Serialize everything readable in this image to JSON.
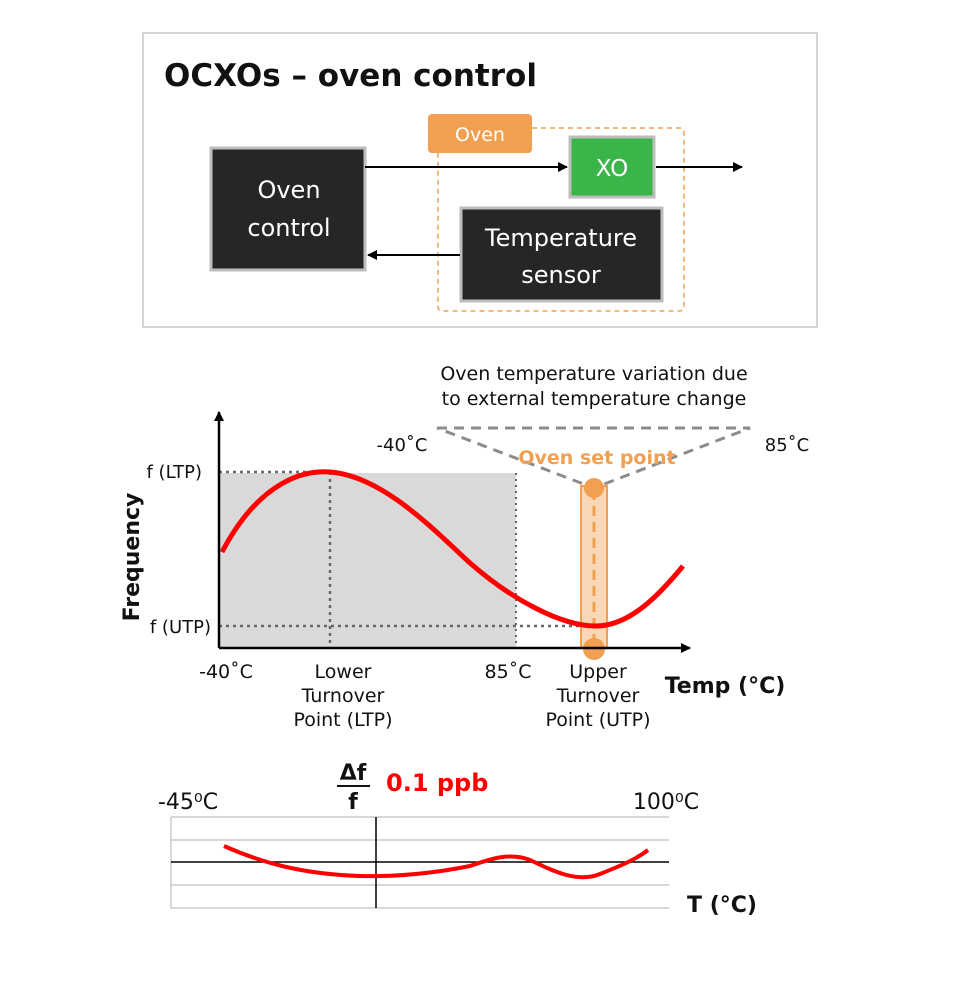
{
  "diagram": {
    "title": "OCXOs – oven control",
    "oven_label": "Oven",
    "xo_label": "XO",
    "oven_control": [
      "Oven",
      "control"
    ],
    "temp_sensor": [
      "Temperature",
      "sensor"
    ]
  },
  "main_plot": {
    "annotation": [
      "Oven temperature variation due",
      "to external temperature change"
    ],
    "ext_min": "-40˚C",
    "ext_max": "85˚C",
    "oven_set_point": "Oven set point",
    "y_axis_label": "Frequency",
    "y_ticks": [
      "f (LTP)",
      "f (UTP)"
    ],
    "x_ticks": {
      "min": "-40˚C",
      "ltp": [
        "Lower",
        "Turnover",
        "Point (LTP)"
      ],
      "max": "85˚C",
      "utp": [
        "Upper",
        "Turnover",
        "Point (UTP)"
      ]
    },
    "x_axis_label": "Temp (°C)",
    "colors": {
      "curve": "#ff0000",
      "oven": "#f0a050",
      "shade": "#d9d9d9"
    }
  },
  "small_plot": {
    "y_label_top": "Δf",
    "y_label_bottom": "f",
    "scale_label": "0.1 ppb",
    "x_min": "-45⁰C",
    "x_max": "100⁰C",
    "x_axis_label": "T (°C)"
  }
}
